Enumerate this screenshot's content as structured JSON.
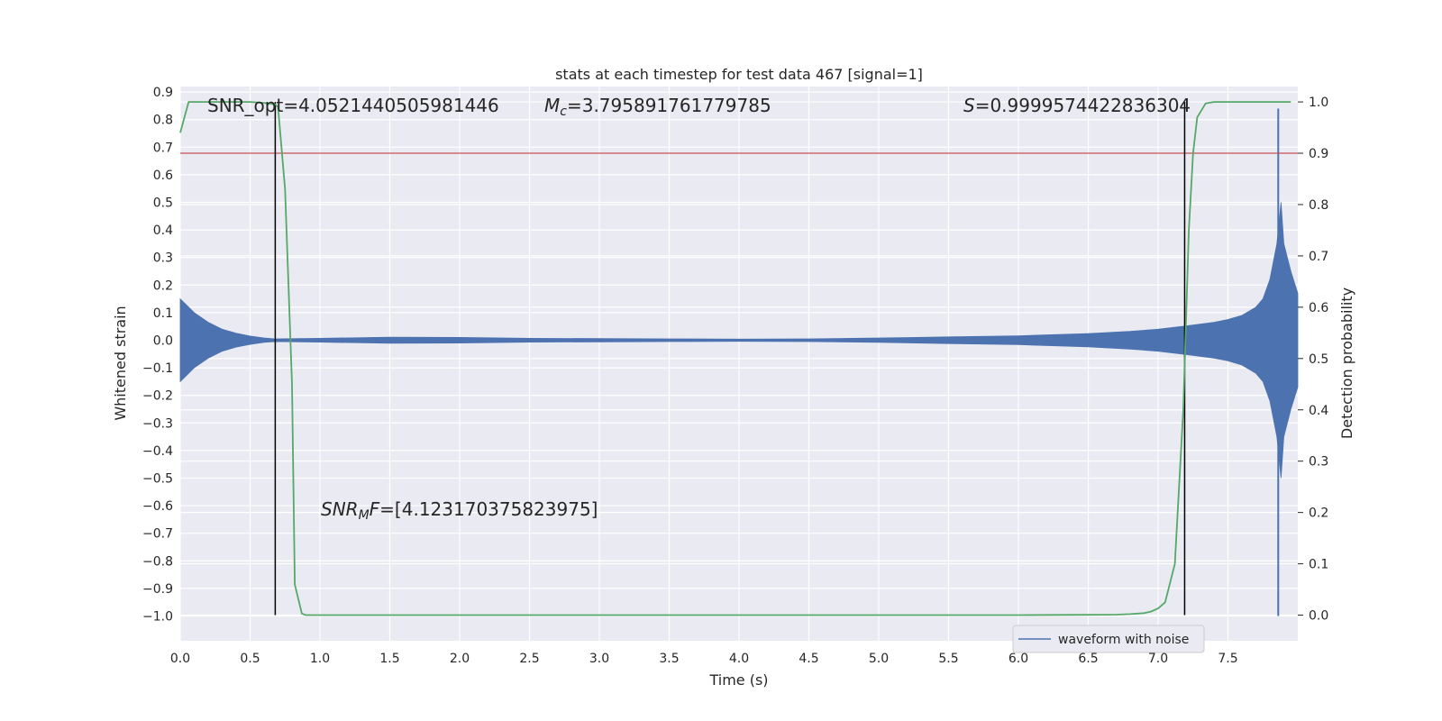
{
  "chart_data": {
    "type": "line",
    "title": "stats at each timestep for test data 467 [signal=1]",
    "xlabel": "Time (s)",
    "ylabel": "Whitened strain",
    "y2label": "Detection probability",
    "xlim": [
      0.0,
      8.0
    ],
    "ylim": [
      -1.09,
      0.92
    ],
    "y2lim": [
      -0.05,
      1.03
    ],
    "xticks": [
      "0.0",
      "0.5",
      "1.0",
      "1.5",
      "2.0",
      "2.5",
      "3.0",
      "3.5",
      "4.0",
      "4.5",
      "5.0",
      "5.5",
      "6.0",
      "6.5",
      "7.0",
      "7.5"
    ],
    "yticks": [
      "0.9",
      "0.8",
      "0.7",
      "0.6",
      "0.5",
      "0.4",
      "0.3",
      "0.2",
      "0.1",
      "0.0",
      "−0.1",
      "−0.2",
      "−0.3",
      "−0.4",
      "−0.5",
      "−0.6",
      "−0.7",
      "−0.8",
      "−0.9",
      "−1.0"
    ],
    "y2ticks": [
      "1.0",
      "0.9",
      "0.8",
      "0.7",
      "0.6",
      "0.5",
      "0.4",
      "0.3",
      "0.2",
      "0.1",
      "0.0"
    ],
    "grid": true,
    "legend_position": "lower-right",
    "annotations": {
      "snr_opt": "SNR_opt=4.0521440505981446",
      "mc_prefix": "M",
      "mc_sub": "c",
      "mc_value": "=3.795891761779785",
      "s_symbol": "S",
      "s_value": "=0.9999574422836304",
      "snr_mf_prefix": "SNR",
      "snr_mf_sub": "M",
      "snr_mf_italic": "F",
      "snr_mf_value": "=[4.123170375823975]"
    },
    "series": [
      {
        "name": "waveform with noise",
        "axis": "left",
        "color": "#4c72b0",
        "envelope_x": [
          0.0,
          0.1,
          0.2,
          0.3,
          0.4,
          0.5,
          0.6,
          0.68,
          1.0,
          1.5,
          2.0,
          2.5,
          3.0,
          3.5,
          4.0,
          4.5,
          5.0,
          5.5,
          6.0,
          6.5,
          6.8,
          7.0,
          7.2,
          7.4,
          7.5,
          7.6,
          7.7,
          7.75,
          7.8,
          7.85,
          7.88,
          7.9,
          7.95,
          8.0
        ],
        "envelope_y": [
          0.15,
          0.1,
          0.065,
          0.04,
          0.025,
          0.015,
          0.008,
          0.005,
          0.007,
          0.011,
          0.01,
          0.007,
          0.006,
          0.005,
          0.004,
          0.005,
          0.008,
          0.012,
          0.016,
          0.024,
          0.032,
          0.04,
          0.052,
          0.065,
          0.075,
          0.09,
          0.12,
          0.15,
          0.22,
          0.35,
          0.5,
          0.35,
          0.25,
          0.17
        ],
        "spike_x": 7.86,
        "spike_max": 0.84,
        "spike_min": -1.0
      },
      {
        "name": "",
        "axis": "right",
        "color": "#55a868",
        "x": [
          0.0,
          0.06,
          0.1,
          0.2,
          0.3,
          0.4,
          0.5,
          0.6,
          0.68,
          0.7,
          0.75,
          0.8,
          0.82,
          0.87,
          0.9,
          1.0,
          2.0,
          3.0,
          4.0,
          5.0,
          6.0,
          6.5,
          6.7,
          6.8,
          6.9,
          6.95,
          7.0,
          7.05,
          7.12,
          7.18,
          7.22,
          7.25,
          7.28,
          7.34,
          7.4,
          7.5,
          7.7,
          7.9,
          7.95
        ],
        "y": [
          0.94,
          1.0,
          1.0,
          1.0,
          1.0,
          1.0,
          1.0,
          0.998,
          0.995,
          0.99,
          0.83,
          0.45,
          0.06,
          0.003,
          0.0,
          0.0,
          0.0,
          0.0,
          0.0,
          0.0,
          0.0,
          0.0005,
          0.001,
          0.002,
          0.004,
          0.007,
          0.013,
          0.025,
          0.1,
          0.4,
          0.75,
          0.9,
          0.97,
          0.997,
          1.0,
          1.0,
          1.0,
          1.0,
          1.0
        ]
      }
    ],
    "hlines": [
      {
        "axis": "right",
        "y": 0.9,
        "color": "#c44e52"
      }
    ],
    "vlines": [
      {
        "x": 0.68,
        "color": "#000000"
      },
      {
        "x": 7.19,
        "color": "#000000"
      }
    ]
  }
}
